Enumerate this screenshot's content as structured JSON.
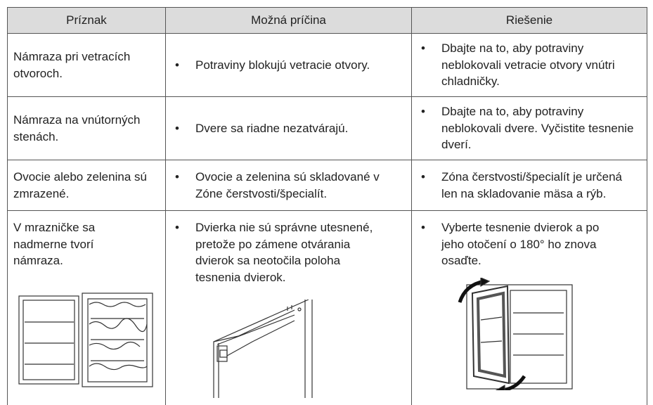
{
  "table": {
    "header": [
      "Príznak",
      "Možná príčina",
      "Riešenie"
    ],
    "rows": [
      [
        "Námraza pri vetracích otvoroch.",
        "Potraviny blokujú vetracie otvory.",
        "Dbajte na to, aby potraviny neblokovali vetracie otvory vnútri chladničky."
      ],
      [
        "Námraza na vnútorných stenách.",
        "Dvere sa riadne nezatvárajú.",
        "Dbajte na to, aby potraviny neblokovali dvere. Vyčistite tesnenie dverí."
      ],
      [
        "Ovocie alebo zelenina sú zmrazené.",
        "Ovocie a zelenina sú skladované v Zóne čerstvosti/špecialít.",
        "Zóna čerstvosti/špecialít je určená len na skladovanie mäsa a rýb."
      ],
      [
        "V mrazničke sa nadmerne tvorí námraza.",
        "Dvierka nie sú správne utesnené, pretože po zámene otvárania dvierok sa neotočila poloha tesnenia dvierok.",
        "Vyberte tesnenie dvierok a po jeho otočení o 180° ho znova osaďte."
      ]
    ]
  }
}
